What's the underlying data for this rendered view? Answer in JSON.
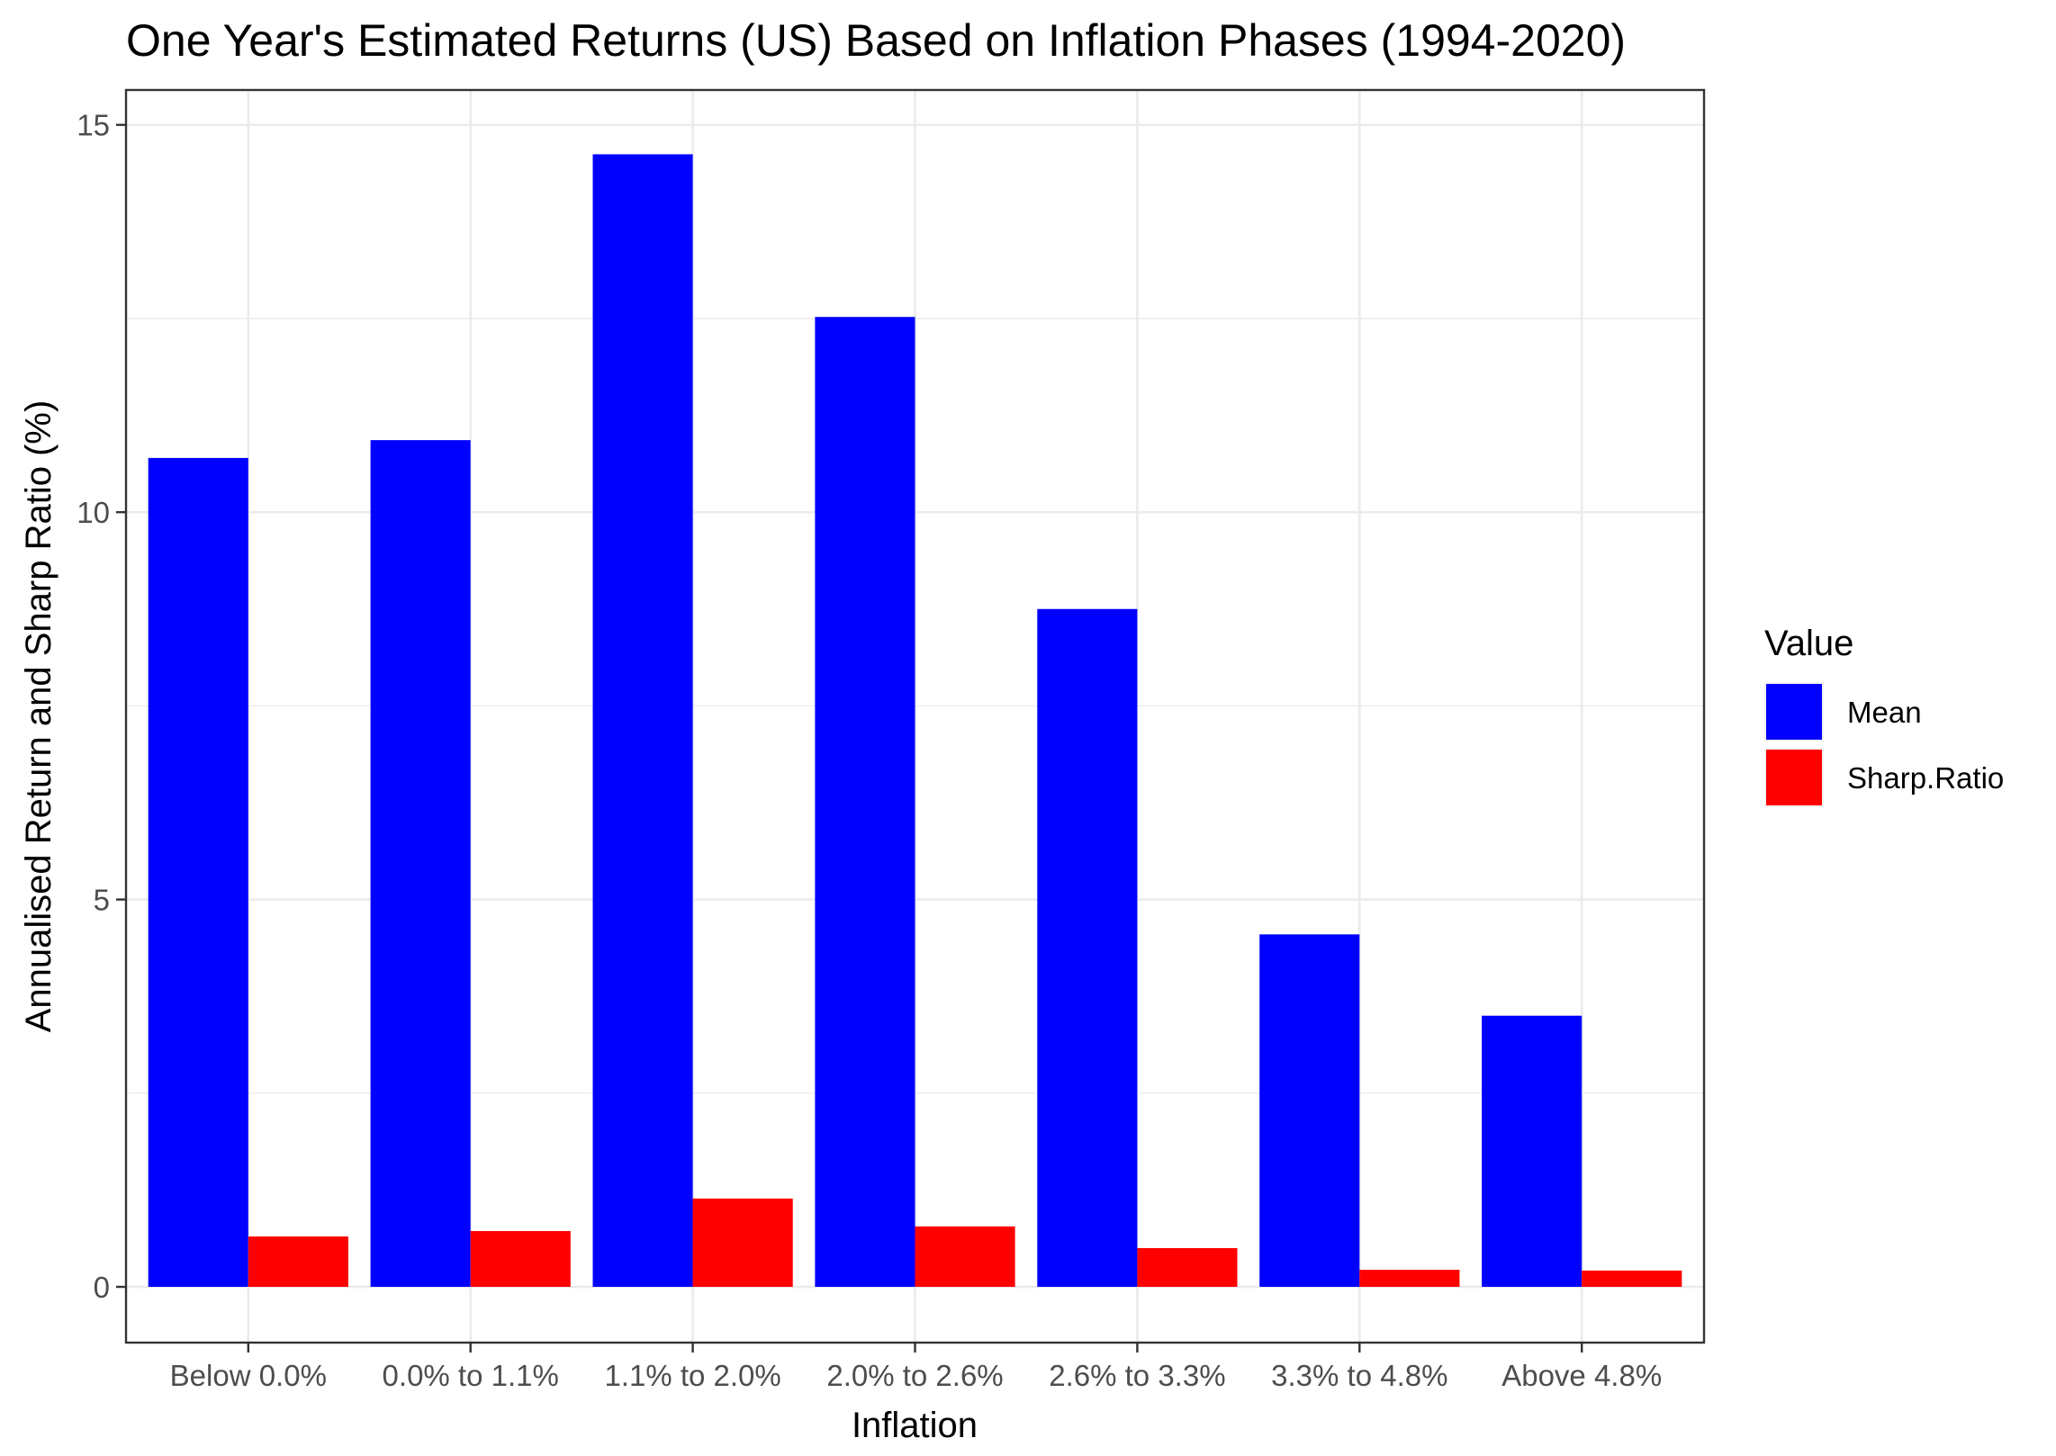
{
  "chart_data": {
    "type": "bar",
    "title": "One Year's Estimated Returns (US) Based on Inflation Phases (1994-2020)",
    "xlabel": "Inflation",
    "ylabel": "Annualised Return and Sharp Ratio (%)",
    "categories": [
      "Below  0.0%",
      "0.0% to 1.1%",
      "1.1% to 2.0%",
      "2.0% to 2.6%",
      "2.6% to 3.3%",
      "3.3% to 4.8%",
      "Above 4.8%"
    ],
    "series": [
      {
        "name": "Mean",
        "color": "#0000FF",
        "values": [
          10.7,
          10.93,
          14.62,
          12.52,
          8.75,
          4.55,
          3.5
        ]
      },
      {
        "name": "Sharp.Ratio",
        "color": "#FF0000",
        "values": [
          0.65,
          0.72,
          1.14,
          0.78,
          0.5,
          0.22,
          0.21
        ]
      }
    ],
    "ylim": [
      -0.72,
      15.45
    ],
    "yticks": [
      0,
      5,
      10,
      15
    ],
    "grid": true,
    "legend": {
      "title": "Value",
      "position": "right"
    }
  }
}
